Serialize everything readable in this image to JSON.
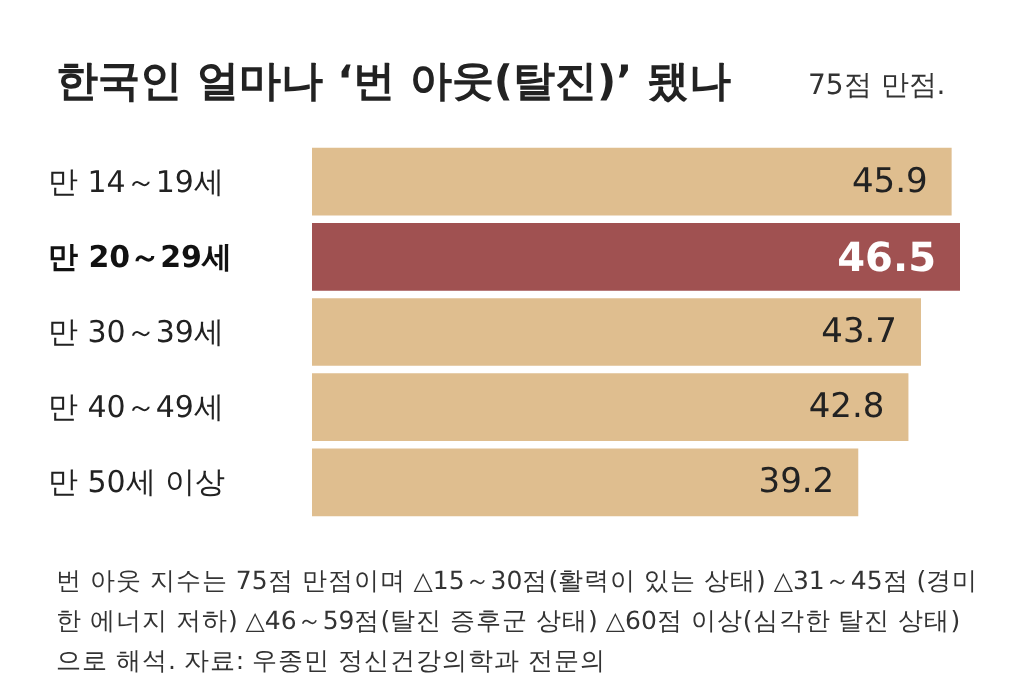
{
  "chart_data": {
    "type": "bar",
    "orientation": "horizontal",
    "title": "한국인 얼마나 ‘번 아웃(탈진)’ 됐나",
    "subtitle": "75점 만점.",
    "categories": [
      "만 14～19세",
      "만 20～29세",
      "만 30～39세",
      "만 40～49세",
      "만 50세 이상"
    ],
    "values": [
      45.9,
      46.5,
      43.7,
      42.8,
      39.2
    ],
    "colors": [
      "#dfbe8f",
      "#a05151",
      "#dfbe8f",
      "#dfbe8f",
      "#dfbe8f"
    ],
    "data_labels": true,
    "annotations": [
      "번 아웃 지수는 75점 만점이며 △15～30점(활력이 있는 상태) △31～45점 (경미한 에너지 저하) △46～59점(탈진 증후군 상태) △60점 이상(심각한 탈진 상태)으로 해석. 자료: 우종민 정신건강의학과 전문의"
    ]
  }
}
